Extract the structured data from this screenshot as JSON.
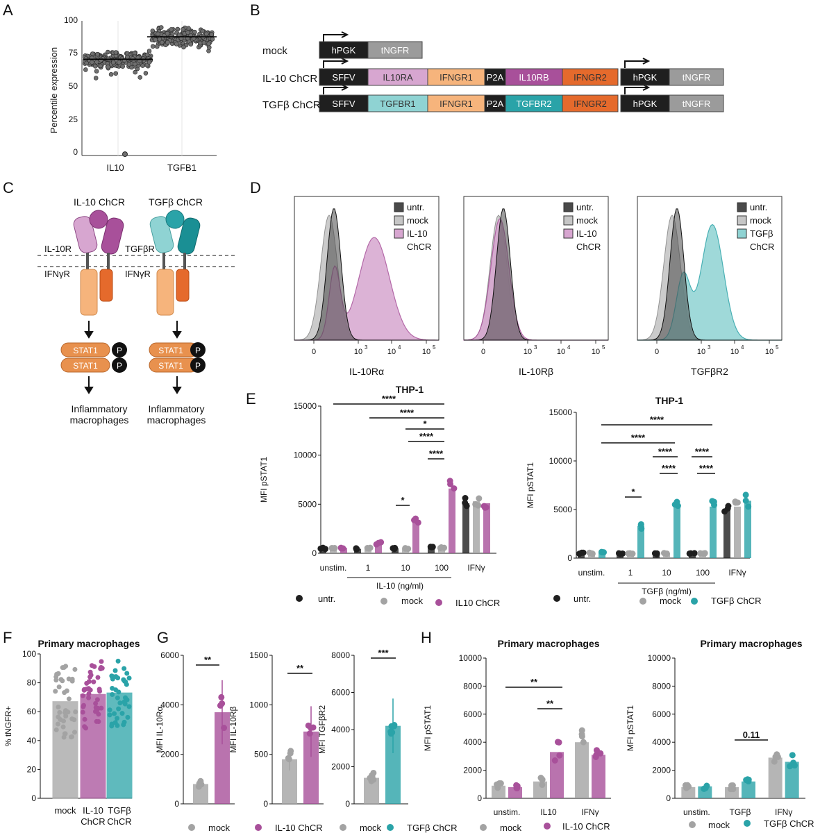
{
  "colors": {
    "untr": "#1f1f1f",
    "mock": "#a3a3a3",
    "il10": "#a8509a",
    "il10_light": "#d7a6d0",
    "tgfb": "#2aa3a8",
    "tgfb_light": "#8fd3d3",
    "ifngr1": "#f6b47c",
    "ifngr2": "#e56a2c",
    "hist_untr": "#4a4a4a",
    "hist_mock": "#c6c6c6"
  },
  "panels": {
    "A": "A",
    "B": "B",
    "C": "C",
    "D": "D",
    "E": "E",
    "F": "F",
    "G": "G",
    "H": "H"
  },
  "panelA": {
    "ylabel": "Percentile expression",
    "yticks": [
      "0",
      "25",
      "50",
      "75",
      "100"
    ],
    "groups": [
      "IL10",
      "TGFB1"
    ]
  },
  "panelB": {
    "rows": [
      {
        "name": "mock",
        "segments": [
          "hPGK",
          "tNGFR"
        ]
      },
      {
        "name": "IL-10 ChCR",
        "segments": [
          "SFFV",
          "IL10RA",
          "IFNGR1",
          "P2A",
          "IL10RB",
          "IFNGR2"
        ],
        "tail": [
          "hPGK",
          "tNGFR"
        ]
      },
      {
        "name": "TGFβ ChCR",
        "segments": [
          "SFFV",
          "TGFBR1",
          "IFNGR1",
          "P2A",
          "TGFBR2",
          "IFNGR2"
        ],
        "tail": [
          "hPGK",
          "tNGFR"
        ]
      }
    ]
  },
  "panelC": {
    "il10_title": "IL-10 ChCR",
    "tgfb_title": "TGFβ ChCR",
    "il10r": "IL-10R",
    "tgfbr": "TGFβR",
    "ifngr_left": "IFNγR",
    "ifngr_right": "IFNγR",
    "stat": "STAT1",
    "p": "P",
    "outcome_line1": "Inflammatory",
    "outcome_line2": "macrophages"
  },
  "panelD": {
    "hist": [
      {
        "xlabel": "IL-10Rα",
        "legend": [
          "untr.",
          "mock",
          "IL-10",
          "ChCR"
        ]
      },
      {
        "xlabel": "IL-10Rβ",
        "legend": [
          "untr.",
          "mock",
          "IL-10",
          "ChCR"
        ]
      },
      {
        "xlabel": "TGFβR2",
        "legend": [
          "untr.",
          "mock",
          "TGFβ",
          "ChCR"
        ]
      }
    ],
    "ticks": [
      "0",
      "10",
      "10",
      "10",
      "10"
    ],
    "exps": [
      "3",
      "4",
      "5"
    ]
  },
  "chart_data": [
    {
      "type": "scatter",
      "id": "A",
      "title": "",
      "ylabel": "Percentile expression",
      "categories": [
        "IL10",
        "TGFB1"
      ],
      "ylim": [
        0,
        100
      ],
      "series": [
        {
          "name": "IL10",
          "median": 73
        },
        {
          "name": "TGFB1",
          "median": 90
        }
      ],
      "outlier": {
        "group": "IL10",
        "value": 1
      }
    },
    {
      "type": "bar",
      "id": "E1",
      "title": "THP-1",
      "ylabel": "MFI pSTAT1",
      "xlabel": "IL-10 (ng/ml)",
      "categories": [
        "unstim.",
        "1",
        "10",
        "100",
        "IFNγ"
      ],
      "ylim": [
        0,
        15000
      ],
      "yticks": [
        "0",
        "5000",
        "10000",
        "15000"
      ],
      "series": [
        {
          "name": "untr.",
          "values": [
            500,
            450,
            500,
            600,
            5100
          ]
        },
        {
          "name": "mock",
          "values": [
            500,
            500,
            500,
            600,
            5300
          ]
        },
        {
          "name": "IL10 ChCR",
          "values": [
            550,
            1000,
            3300,
            6600,
            5100
          ]
        }
      ],
      "sig": [
        "****",
        "****",
        "*",
        "****",
        "****",
        "*"
      ]
    },
    {
      "type": "bar",
      "id": "E2",
      "title": "THP-1",
      "ylabel": "MFI pSTAT1",
      "xlabel": "TGFβ (ng/ml)",
      "categories": [
        "unstim.",
        "1",
        "10",
        "100",
        "IFNγ"
      ],
      "ylim": [
        0,
        15000
      ],
      "yticks": [
        "0",
        "5000",
        "10000",
        "15000"
      ],
      "series": [
        {
          "name": "untr.",
          "values": [
            500,
            450,
            450,
            500,
            5100
          ]
        },
        {
          "name": "mock",
          "values": [
            500,
            450,
            500,
            500,
            5300
          ]
        },
        {
          "name": "TGFβ ChCR",
          "values": [
            600,
            3300,
            5300,
            5300,
            5900
          ]
        }
      ],
      "sig": [
        "****",
        "****",
        "*",
        "****",
        "****",
        "****",
        "****"
      ]
    },
    {
      "type": "bar",
      "id": "F",
      "title": "Primary macrophages",
      "ylabel": "% tNGFR+",
      "categories": [
        "mock",
        "IL-10 ChCR",
        "TGFβ ChCR"
      ],
      "values": [
        67,
        72,
        73
      ],
      "ylim": [
        0,
        100
      ],
      "yticks": [
        "0",
        "20",
        "40",
        "60",
        "80",
        "100"
      ]
    },
    {
      "type": "bar",
      "id": "G1",
      "title": "Primary macrophages",
      "ylabel": "MFI IL-10Rα",
      "categories": [
        "mock",
        "IL-10 ChCR"
      ],
      "values": [
        800,
        3700
      ],
      "ylim": [
        0,
        6000
      ],
      "yticks": [
        "0",
        "2000",
        "4000",
        "6000"
      ],
      "sig": "**"
    },
    {
      "type": "bar",
      "id": "G2",
      "title": "",
      "ylabel": "MFI IL-10Rβ",
      "categories": [
        "mock",
        "IL-10 ChCR"
      ],
      "values": [
        450,
        730
      ],
      "ylim": [
        0,
        1500
      ],
      "yticks": [
        "0",
        "500",
        "1000",
        "1500"
      ],
      "sig": "**"
    },
    {
      "type": "bar",
      "id": "G3",
      "title": "",
      "ylabel": "MFI TGFβR2",
      "categories": [
        "mock",
        "TGFβ ChCR"
      ],
      "values": [
        1400,
        4200
      ],
      "ylim": [
        0,
        8000
      ],
      "yticks": [
        "0",
        "2000",
        "4000",
        "6000",
        "8000"
      ],
      "sig": "***"
    },
    {
      "type": "bar",
      "id": "H1",
      "title": "Primary macrophages",
      "ylabel": "MFI pSTAT1",
      "categories": [
        "unstim.",
        "IL10",
        "IFNγ"
      ],
      "ylim": [
        0,
        10000
      ],
      "yticks": [
        "0",
        "2000",
        "4000",
        "6000",
        "8000",
        "10000"
      ],
      "series": [
        {
          "name": "mock",
          "values": [
            900,
            1200,
            4000
          ]
        },
        {
          "name": "IL-10 ChCR",
          "values": [
            800,
            3300,
            3100
          ]
        }
      ],
      "sig": [
        "**",
        "**"
      ]
    },
    {
      "type": "bar",
      "id": "H2",
      "title": "Primary macrophages",
      "ylabel": "MFI pSTAT1",
      "categories": [
        "unstim.",
        "TGFβ",
        "IFNγ"
      ],
      "ylim": [
        0,
        10000
      ],
      "yticks": [
        "0",
        "2000",
        "4000",
        "6000",
        "8000",
        "10000"
      ],
      "series": [
        {
          "name": "mock",
          "values": [
            800,
            800,
            2900
          ]
        },
        {
          "name": "TGFβ ChCR",
          "values": [
            850,
            1200,
            2600
          ]
        }
      ],
      "sig": [
        "0.11"
      ]
    }
  ],
  "legendE1": [
    "untr.",
    "mock",
    "IL10 ChCR"
  ],
  "legendE2": [
    "untr.",
    "mock",
    "TGFβ ChCR"
  ],
  "legendG": [
    "mock",
    "IL-10 ChCR",
    "mock",
    "TGFβ ChCR"
  ],
  "legendH1": [
    "mock",
    "IL-10 ChCR"
  ],
  "legendH2": [
    "mock",
    "TGFβ ChCR"
  ]
}
